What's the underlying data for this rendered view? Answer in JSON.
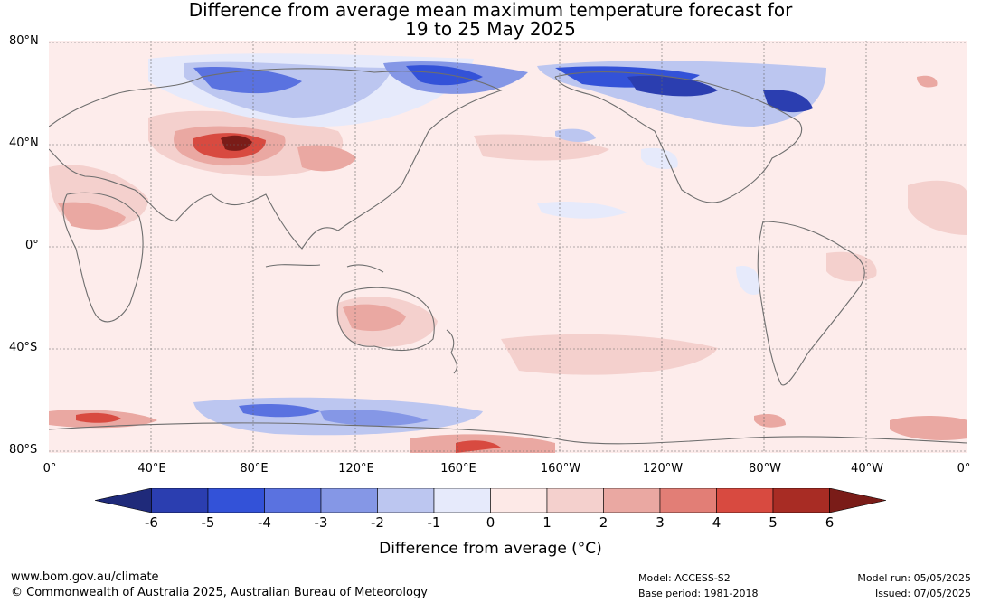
{
  "title": {
    "line1": "Difference from average mean maximum temperature forecast for",
    "line2": "19 to 25 May 2025"
  },
  "map": {
    "lat_labels": [
      "80°N",
      "40°N",
      "0°",
      "40°S",
      "80°S"
    ],
    "lon_labels": [
      "0°",
      "40°E",
      "80°E",
      "120°E",
      "160°E",
      "160°W",
      "120°W",
      "80°W",
      "40°W",
      "0°"
    ]
  },
  "colorbar": {
    "ticks": [
      "-6",
      "-5",
      "-4",
      "-3",
      "-2",
      "-1",
      "0",
      "1",
      "2",
      "3",
      "4",
      "5",
      "6"
    ],
    "colors": [
      "#1f2a7a",
      "#2b3eb0",
      "#3352d8",
      "#5a72e0",
      "#8597e6",
      "#bcc6f0",
      "#e6eafb",
      "#fde9e7",
      "#f4d0cd",
      "#eaa8a2",
      "#e27e76",
      "#d84a40",
      "#a82c24",
      "#7a1c18"
    ],
    "label": "Difference from average (°C)"
  },
  "footer": {
    "website": "www.bom.gov.au/climate",
    "copyright": "© Commonwealth of Australia 2025, Australian Bureau of Meteorology",
    "model": "Model: ACCESS-S2",
    "base_period": "Base period: 1981-2018",
    "model_run": "Model run: 05/05/2025",
    "issued": "Issued: 07/05/2025"
  }
}
